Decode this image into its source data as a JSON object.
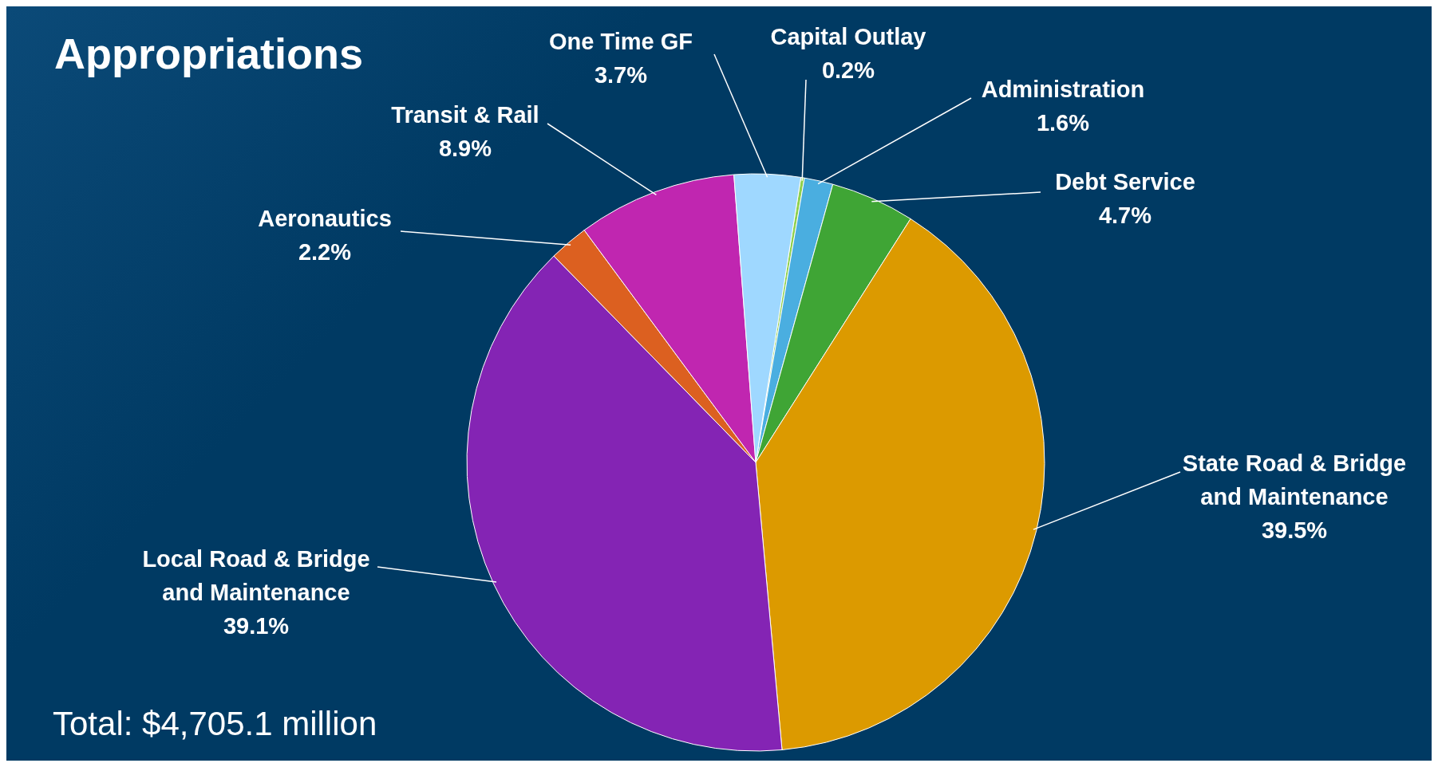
{
  "chart_data": {
    "type": "pie",
    "title": "Appropriations",
    "categories": [
      "Capital Outlay",
      "Administration",
      "Debt Service",
      "State Road & Bridge and Maintenance",
      "Local Road & Bridge and Maintenance",
      "Aeronautics",
      "Transit & Rail",
      "One Time GF"
    ],
    "values": [
      0.2,
      1.6,
      4.7,
      39.5,
      39.1,
      2.2,
      8.9,
      3.7
    ],
    "value_labels": [
      "0.2%",
      "1.6%",
      "4.7%",
      "39.5%",
      "39.1%",
      "2.2%",
      "8.9%",
      "3.7%"
    ],
    "colors": [
      "#8fd14f",
      "#4aaee0",
      "#3fa535",
      "#dc9a00",
      "#8424b4",
      "#dc6020",
      "#c026b0",
      "#9fd8ff"
    ],
    "legend": false,
    "annotations": [
      "Total:  $4,705.1 million"
    ]
  }
}
